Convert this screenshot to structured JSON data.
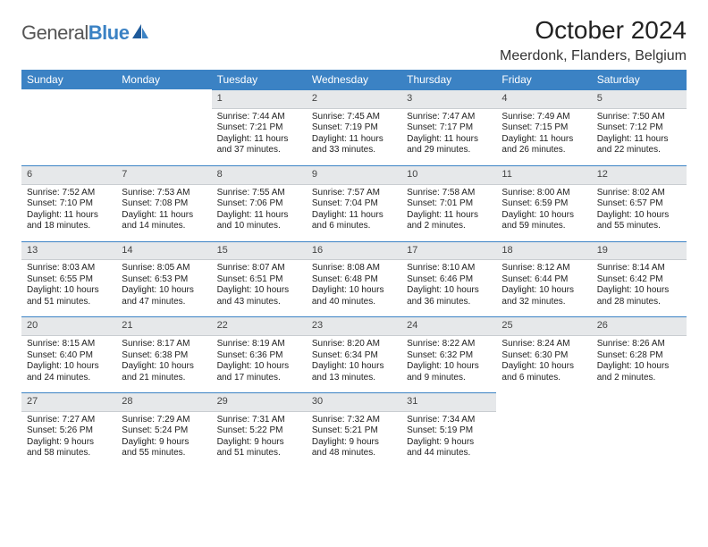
{
  "brand": {
    "general": "General",
    "blue": "Blue"
  },
  "title": "October 2024",
  "location": "Meerdonk, Flanders, Belgium",
  "colors": {
    "header_bg": "#3b82c4",
    "header_text": "#ffffff",
    "daynum_bg": "#e6e8ea",
    "border": "#3b82c4",
    "text": "#222222"
  },
  "weekdays": [
    "Sunday",
    "Monday",
    "Tuesday",
    "Wednesday",
    "Thursday",
    "Friday",
    "Saturday"
  ],
  "weeks": [
    [
      {
        "empty": true
      },
      {
        "empty": true
      },
      {
        "day": "1",
        "sunrise": "Sunrise: 7:44 AM",
        "sunset": "Sunset: 7:21 PM",
        "daylight": "Daylight: 11 hours and 37 minutes."
      },
      {
        "day": "2",
        "sunrise": "Sunrise: 7:45 AM",
        "sunset": "Sunset: 7:19 PM",
        "daylight": "Daylight: 11 hours and 33 minutes."
      },
      {
        "day": "3",
        "sunrise": "Sunrise: 7:47 AM",
        "sunset": "Sunset: 7:17 PM",
        "daylight": "Daylight: 11 hours and 29 minutes."
      },
      {
        "day": "4",
        "sunrise": "Sunrise: 7:49 AM",
        "sunset": "Sunset: 7:15 PM",
        "daylight": "Daylight: 11 hours and 26 minutes."
      },
      {
        "day": "5",
        "sunrise": "Sunrise: 7:50 AM",
        "sunset": "Sunset: 7:12 PM",
        "daylight": "Daylight: 11 hours and 22 minutes."
      }
    ],
    [
      {
        "day": "6",
        "sunrise": "Sunrise: 7:52 AM",
        "sunset": "Sunset: 7:10 PM",
        "daylight": "Daylight: 11 hours and 18 minutes."
      },
      {
        "day": "7",
        "sunrise": "Sunrise: 7:53 AM",
        "sunset": "Sunset: 7:08 PM",
        "daylight": "Daylight: 11 hours and 14 minutes."
      },
      {
        "day": "8",
        "sunrise": "Sunrise: 7:55 AM",
        "sunset": "Sunset: 7:06 PM",
        "daylight": "Daylight: 11 hours and 10 minutes."
      },
      {
        "day": "9",
        "sunrise": "Sunrise: 7:57 AM",
        "sunset": "Sunset: 7:04 PM",
        "daylight": "Daylight: 11 hours and 6 minutes."
      },
      {
        "day": "10",
        "sunrise": "Sunrise: 7:58 AM",
        "sunset": "Sunset: 7:01 PM",
        "daylight": "Daylight: 11 hours and 2 minutes."
      },
      {
        "day": "11",
        "sunrise": "Sunrise: 8:00 AM",
        "sunset": "Sunset: 6:59 PM",
        "daylight": "Daylight: 10 hours and 59 minutes."
      },
      {
        "day": "12",
        "sunrise": "Sunrise: 8:02 AM",
        "sunset": "Sunset: 6:57 PM",
        "daylight": "Daylight: 10 hours and 55 minutes."
      }
    ],
    [
      {
        "day": "13",
        "sunrise": "Sunrise: 8:03 AM",
        "sunset": "Sunset: 6:55 PM",
        "daylight": "Daylight: 10 hours and 51 minutes."
      },
      {
        "day": "14",
        "sunrise": "Sunrise: 8:05 AM",
        "sunset": "Sunset: 6:53 PM",
        "daylight": "Daylight: 10 hours and 47 minutes."
      },
      {
        "day": "15",
        "sunrise": "Sunrise: 8:07 AM",
        "sunset": "Sunset: 6:51 PM",
        "daylight": "Daylight: 10 hours and 43 minutes."
      },
      {
        "day": "16",
        "sunrise": "Sunrise: 8:08 AM",
        "sunset": "Sunset: 6:48 PM",
        "daylight": "Daylight: 10 hours and 40 minutes."
      },
      {
        "day": "17",
        "sunrise": "Sunrise: 8:10 AM",
        "sunset": "Sunset: 6:46 PM",
        "daylight": "Daylight: 10 hours and 36 minutes."
      },
      {
        "day": "18",
        "sunrise": "Sunrise: 8:12 AM",
        "sunset": "Sunset: 6:44 PM",
        "daylight": "Daylight: 10 hours and 32 minutes."
      },
      {
        "day": "19",
        "sunrise": "Sunrise: 8:14 AM",
        "sunset": "Sunset: 6:42 PM",
        "daylight": "Daylight: 10 hours and 28 minutes."
      }
    ],
    [
      {
        "day": "20",
        "sunrise": "Sunrise: 8:15 AM",
        "sunset": "Sunset: 6:40 PM",
        "daylight": "Daylight: 10 hours and 24 minutes."
      },
      {
        "day": "21",
        "sunrise": "Sunrise: 8:17 AM",
        "sunset": "Sunset: 6:38 PM",
        "daylight": "Daylight: 10 hours and 21 minutes."
      },
      {
        "day": "22",
        "sunrise": "Sunrise: 8:19 AM",
        "sunset": "Sunset: 6:36 PM",
        "daylight": "Daylight: 10 hours and 17 minutes."
      },
      {
        "day": "23",
        "sunrise": "Sunrise: 8:20 AM",
        "sunset": "Sunset: 6:34 PM",
        "daylight": "Daylight: 10 hours and 13 minutes."
      },
      {
        "day": "24",
        "sunrise": "Sunrise: 8:22 AM",
        "sunset": "Sunset: 6:32 PM",
        "daylight": "Daylight: 10 hours and 9 minutes."
      },
      {
        "day": "25",
        "sunrise": "Sunrise: 8:24 AM",
        "sunset": "Sunset: 6:30 PM",
        "daylight": "Daylight: 10 hours and 6 minutes."
      },
      {
        "day": "26",
        "sunrise": "Sunrise: 8:26 AM",
        "sunset": "Sunset: 6:28 PM",
        "daylight": "Daylight: 10 hours and 2 minutes."
      }
    ],
    [
      {
        "day": "27",
        "sunrise": "Sunrise: 7:27 AM",
        "sunset": "Sunset: 5:26 PM",
        "daylight": "Daylight: 9 hours and 58 minutes."
      },
      {
        "day": "28",
        "sunrise": "Sunrise: 7:29 AM",
        "sunset": "Sunset: 5:24 PM",
        "daylight": "Daylight: 9 hours and 55 minutes."
      },
      {
        "day": "29",
        "sunrise": "Sunrise: 7:31 AM",
        "sunset": "Sunset: 5:22 PM",
        "daylight": "Daylight: 9 hours and 51 minutes."
      },
      {
        "day": "30",
        "sunrise": "Sunrise: 7:32 AM",
        "sunset": "Sunset: 5:21 PM",
        "daylight": "Daylight: 9 hours and 48 minutes."
      },
      {
        "day": "31",
        "sunrise": "Sunrise: 7:34 AM",
        "sunset": "Sunset: 5:19 PM",
        "daylight": "Daylight: 9 hours and 44 minutes."
      },
      {
        "empty": true
      },
      {
        "empty": true
      }
    ]
  ]
}
